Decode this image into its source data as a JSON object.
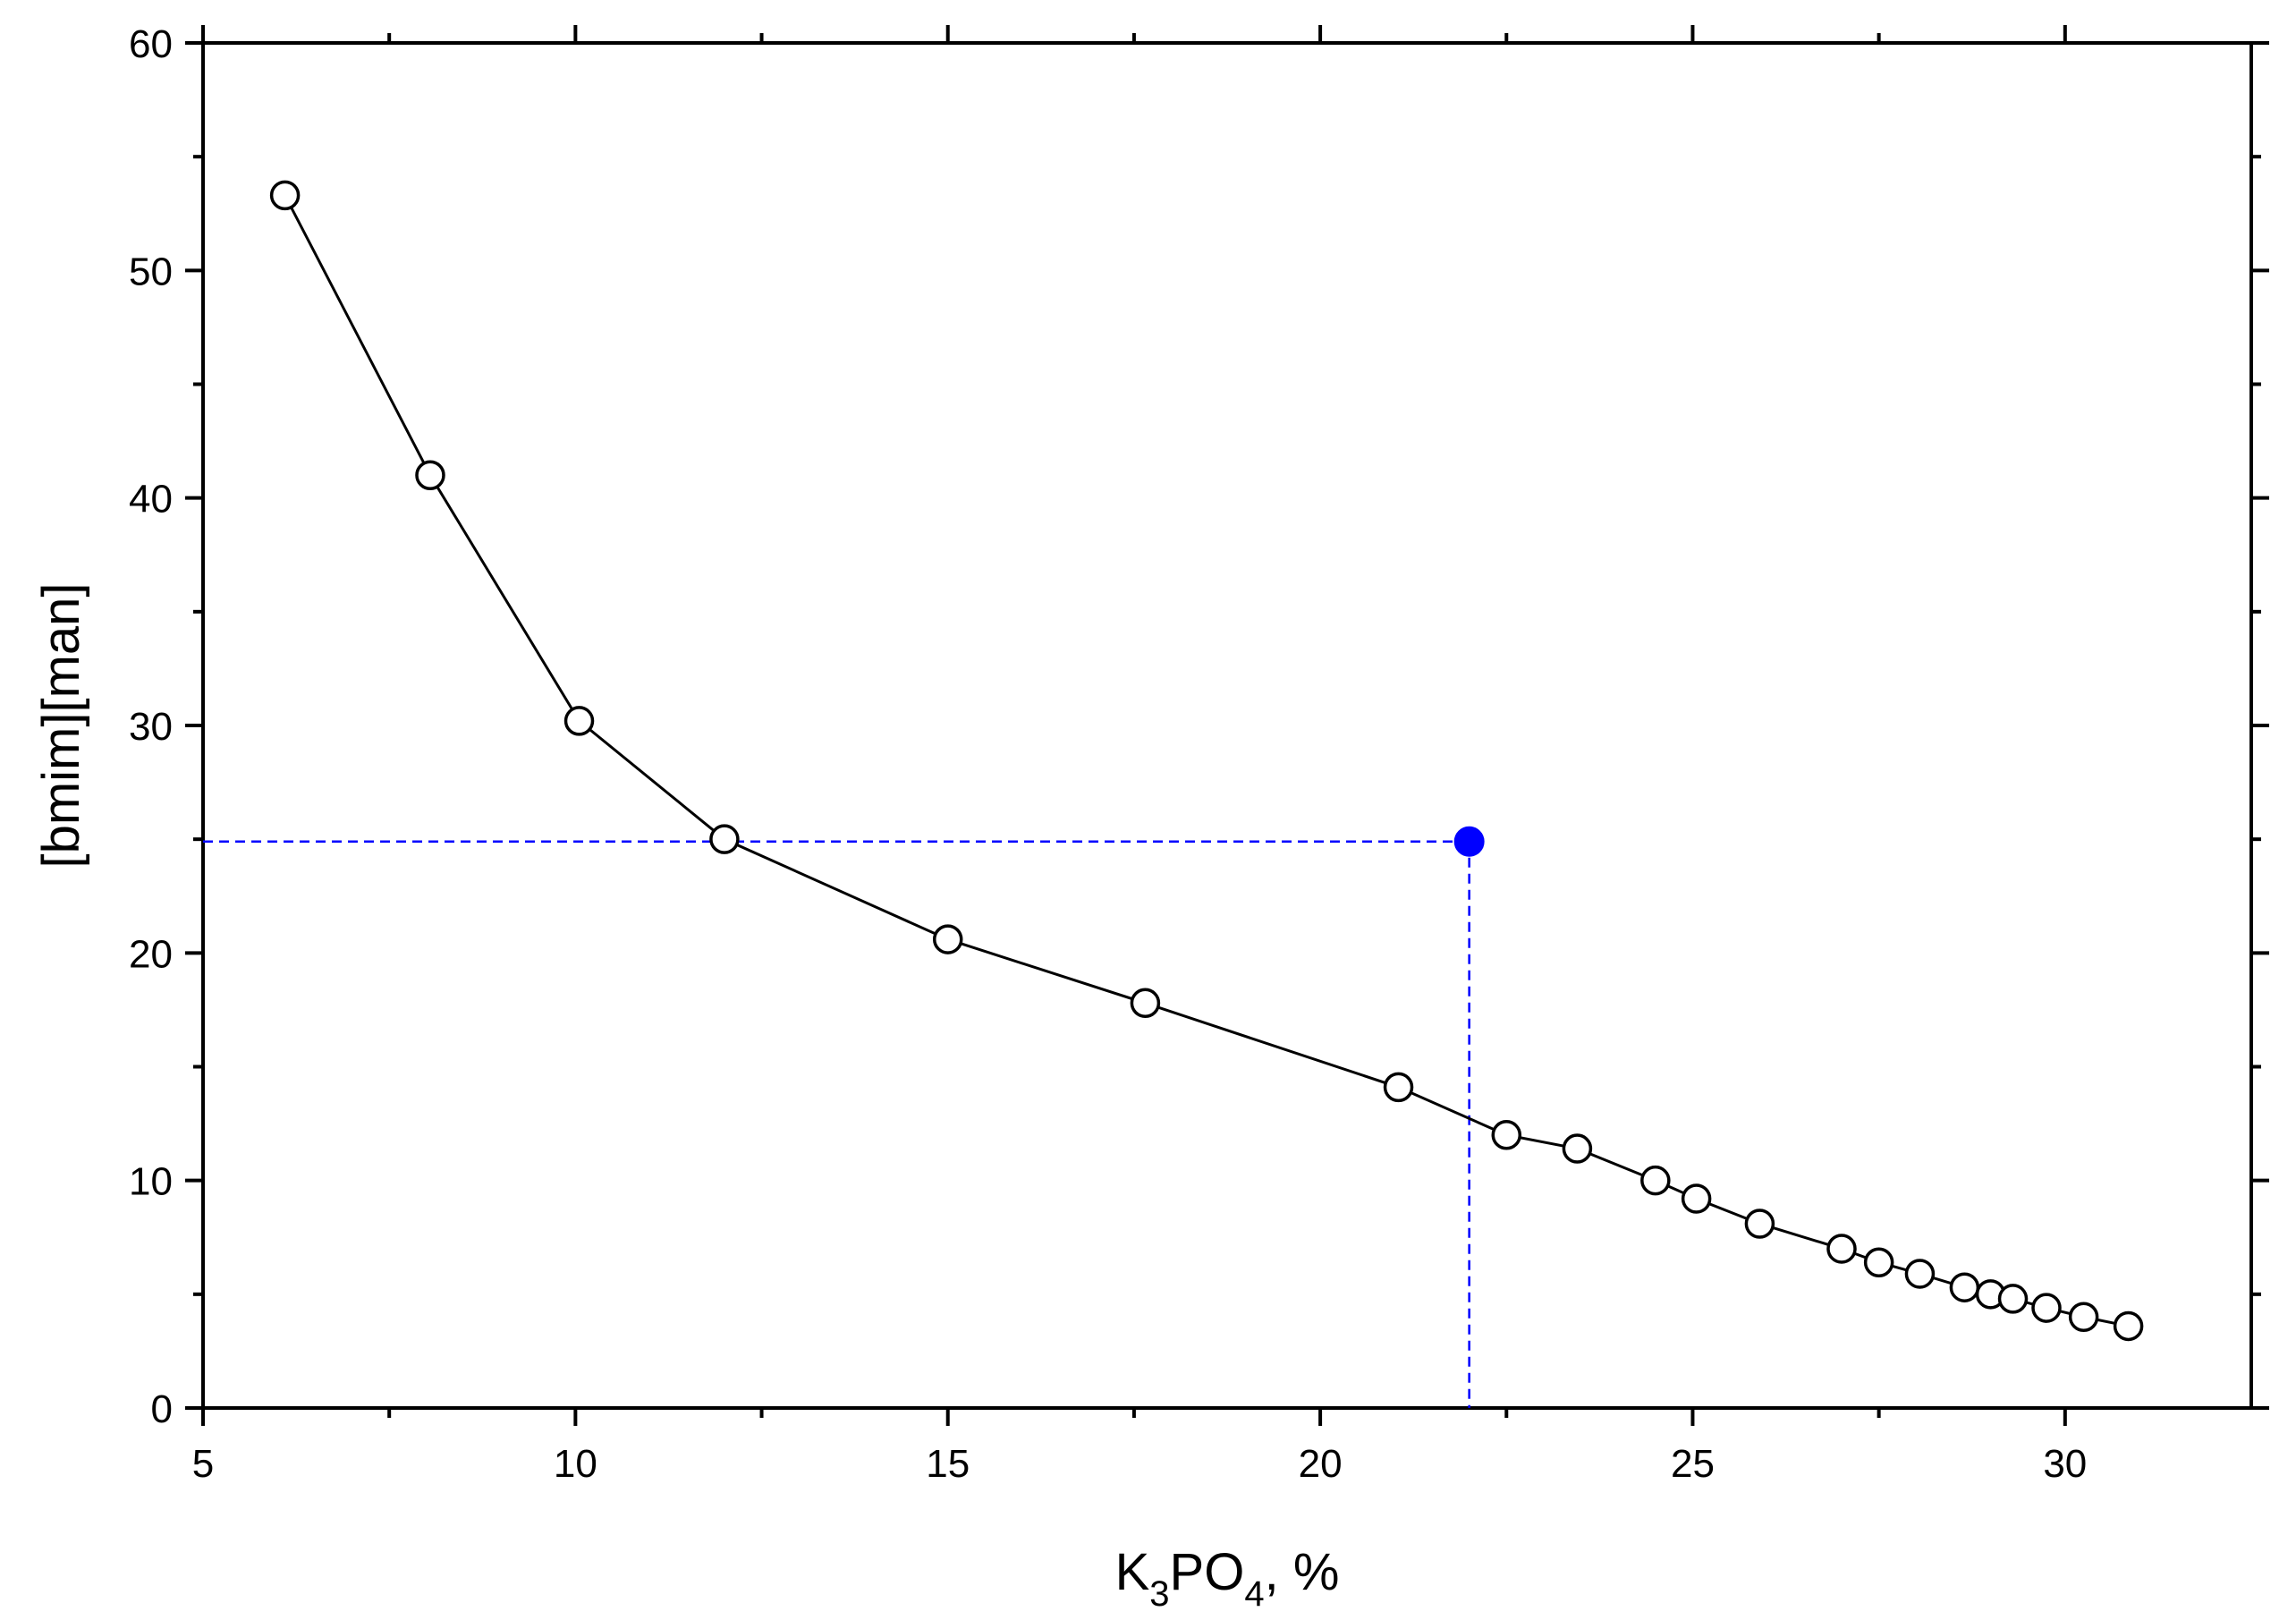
{
  "chart_data": {
    "type": "scatter",
    "xlabel": {
      "main": "K",
      "sub1": "3",
      "mid": "PO",
      "sub2": "4",
      "tail": ", %"
    },
    "ylabel": "[bmim][man]",
    "xlim": [
      5,
      32.5
    ],
    "ylim": [
      0,
      60
    ],
    "x_ticks": [
      "5",
      "10",
      "15",
      "20",
      "25",
      "30"
    ],
    "y_ticks": [
      "0",
      "10",
      "20",
      "30",
      "40",
      "50",
      "60"
    ],
    "grid": false,
    "series": [
      {
        "style": "line-open-circles",
        "color": "#000000",
        "points": [
          [
            6.1,
            53.3
          ],
          [
            8.05,
            41.0
          ],
          [
            10.05,
            30.2
          ],
          [
            12.0,
            25.0
          ],
          [
            15.0,
            20.6
          ],
          [
            17.65,
            17.8
          ],
          [
            21.05,
            14.1
          ],
          [
            22.5,
            12.0
          ],
          [
            23.45,
            11.4
          ],
          [
            24.5,
            10.0
          ],
          [
            25.05,
            9.2
          ],
          [
            25.9,
            8.1
          ],
          [
            27.0,
            7.0
          ],
          [
            27.5,
            6.4
          ],
          [
            28.05,
            5.9
          ],
          [
            28.65,
            5.3
          ],
          [
            29.0,
            5.0
          ],
          [
            29.3,
            4.8
          ],
          [
            29.75,
            4.4
          ],
          [
            30.25,
            4.0
          ],
          [
            30.85,
            3.6
          ]
        ]
      }
    ],
    "highlight": {
      "x": 22.0,
      "y": 24.9,
      "color": "#0000ff",
      "guide_lines": "dashed"
    }
  }
}
